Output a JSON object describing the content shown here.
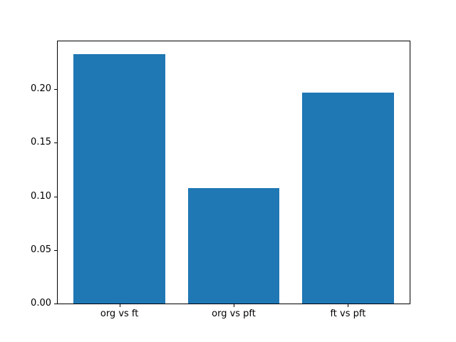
{
  "chart_data": {
    "type": "bar",
    "categories": [
      "org vs ft",
      "org vs pft",
      "ft vs pft"
    ],
    "values": [
      0.233,
      0.108,
      0.197
    ],
    "title": "",
    "xlabel": "",
    "ylabel": "",
    "ylim": [
      0,
      0.2447
    ],
    "xlim": [
      -0.54,
      2.54
    ],
    "yticks": [
      0.0,
      0.05,
      0.1,
      0.15,
      0.2
    ],
    "ytick_labels": [
      "0.00",
      "0.05",
      "0.10",
      "0.15",
      "0.20"
    ],
    "bar_width_fraction": 0.8,
    "bar_color": "#1f77b4",
    "background_color": "#ffffff",
    "spine_color": "#000000",
    "grid": false,
    "legend": null
  }
}
